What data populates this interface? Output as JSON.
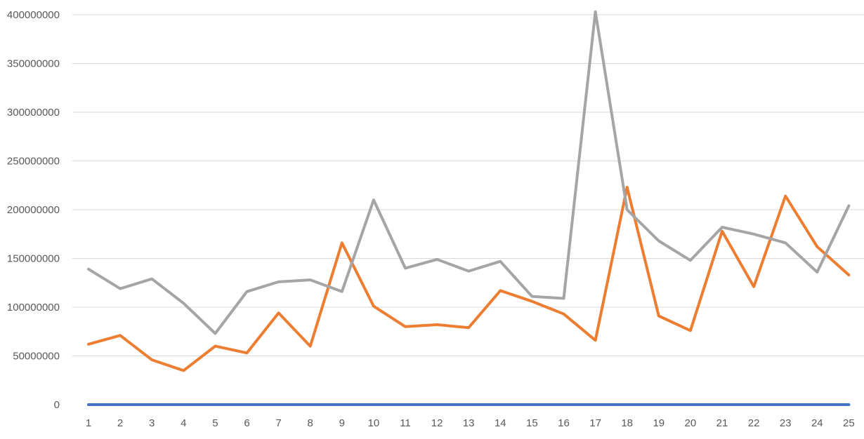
{
  "chart_data": {
    "type": "line",
    "title": "",
    "xlabel": "",
    "ylabel": "",
    "categories": [
      "1",
      "2",
      "3",
      "4",
      "5",
      "6",
      "7",
      "8",
      "9",
      "10",
      "11",
      "12",
      "13",
      "14",
      "15",
      "16",
      "17",
      "18",
      "19",
      "20",
      "21",
      "22",
      "23",
      "24",
      "25"
    ],
    "yticks": [
      "0",
      "50000000",
      "100000000",
      "150000000",
      "200000000",
      "250000000",
      "300000000",
      "350000000",
      "400000000"
    ],
    "ylim": [
      0,
      400000000
    ],
    "grid": true,
    "legend": "none",
    "series": [
      {
        "color": "#4472c4",
        "values": [
          0,
          0,
          0,
          0,
          0,
          0,
          0,
          0,
          0,
          0,
          0,
          0,
          0,
          0,
          0,
          0,
          0,
          0,
          0,
          0,
          0,
          0,
          0,
          0,
          0
        ]
      },
      {
        "color": "#ed7d31",
        "values": [
          62000000,
          71000000,
          46000000,
          35000000,
          60000000,
          53000000,
          94000000,
          60000000,
          166000000,
          101000000,
          80000000,
          82000000,
          79000000,
          117000000,
          106000000,
          93000000,
          66000000,
          223000000,
          91000000,
          76000000,
          178000000,
          121000000,
          214000000,
          162000000,
          133000000
        ]
      },
      {
        "color": "#a5a5a5",
        "values": [
          139000000,
          119000000,
          129000000,
          104000000,
          73000000,
          116000000,
          126000000,
          128000000,
          116000000,
          210000000,
          140000000,
          149000000,
          137000000,
          147000000,
          111000000,
          109000000,
          403000000,
          200000000,
          168000000,
          148000000,
          182000000,
          175000000,
          166000000,
          136000000,
          204000000
        ]
      }
    ]
  }
}
